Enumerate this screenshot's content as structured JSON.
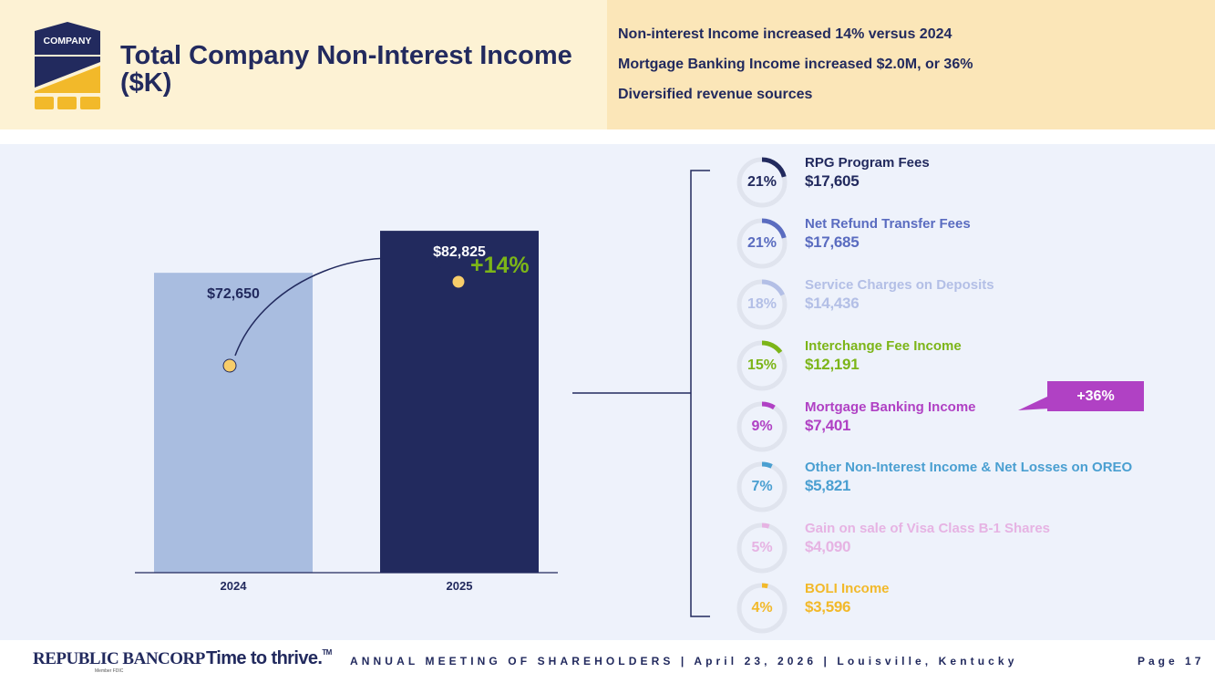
{
  "header": {
    "logo_text": "COMPANY",
    "title": "Total Company Non-Interest Income ($K)",
    "highlights": [
      "Non-interest Income increased 14% versus 2024",
      "Mortgage Banking Income increased $2.0M, or 36%",
      "Diversified revenue sources"
    ]
  },
  "chart_data": [
    {
      "type": "bar",
      "title": "Total Company Non-Interest Income ($K)",
      "categories": [
        "2024",
        "2025"
      ],
      "values": [
        72650,
        82825
      ],
      "value_labels": [
        "$72,650",
        "$82,825"
      ],
      "ylim": [
        0,
        95000
      ],
      "grid": false,
      "annotation": "+14%",
      "colors": [
        "#a9bde0",
        "#222a5e"
      ]
    },
    {
      "type": "pie",
      "categories": [
        "RPG Program Fees",
        "Net Refund Transfer Fees",
        "Service Charges on Deposits",
        "Interchange Fee Income",
        "Mortgage Banking Income",
        "Other Non-Interest Income & Net Losses on OREO",
        "Gain on sale of Visa Class B-1 Shares",
        "BOLI Income"
      ],
      "values": [
        17605,
        17685,
        14436,
        12191,
        7401,
        5821,
        4090,
        3596
      ],
      "value_labels": [
        "$17,605",
        "$17,685",
        "$14,436",
        "$12,191",
        "$7,401",
        "$5,821",
        "$4,090",
        "$3,596"
      ],
      "percent_labels": [
        "21%",
        "21%",
        "18%",
        "15%",
        "9%",
        "7%",
        "5%",
        "4%"
      ],
      "percents": [
        21,
        21,
        18,
        15,
        9,
        7,
        5,
        4
      ],
      "colors": [
        "#222a5e",
        "#5a6cc0",
        "#b3bfe6",
        "#7cb518",
        "#b041c4",
        "#4a9fd1",
        "#e6b3e3",
        "#f2b92a"
      ],
      "annotation": "+36%"
    }
  ],
  "footer": {
    "brand": "REPUBLIC BANCORP",
    "member": "Member FDIC",
    "tagline": "Time to thrive.",
    "tm": "TM",
    "meeting": "ANNUAL MEETING OF SHAREHOLDERS | April 23, 2026 | Louisville, Kentucky",
    "page": "Page 17"
  }
}
